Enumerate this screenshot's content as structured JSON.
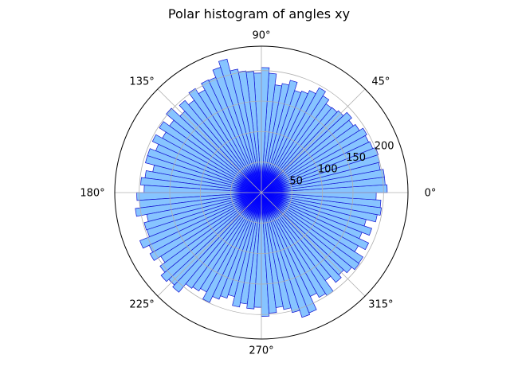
{
  "chart_data": {
    "type": "bar",
    "subtype": "polar-histogram",
    "title": "Polar histogram of angles xy",
    "theta_ticks": [
      "0°",
      "45°",
      "90°",
      "135°",
      "180°",
      "225°",
      "270°",
      "315°"
    ],
    "theta_tick_degrees": [
      0,
      45,
      90,
      135,
      180,
      225,
      270,
      315
    ],
    "r_ticks": [
      50,
      100,
      150,
      200
    ],
    "r_tick_labels": [
      "50",
      "100",
      "150",
      "200"
    ],
    "rlim": [
      0,
      240
    ],
    "rlabel_position_degrees": 22.5,
    "grid": true,
    "bin_count": 100,
    "bin_width_degrees": 3.6,
    "counts": [
      206,
      203,
      203,
      198,
      200,
      201,
      196,
      194,
      197,
      190,
      186,
      192,
      184,
      181,
      180,
      188,
      196,
      185,
      179,
      176,
      190,
      182,
      178,
      196,
      205,
      196,
      199,
      201,
      206,
      226,
      216,
      203,
      204,
      192,
      202,
      187,
      196,
      183,
      202,
      186,
      198,
      185,
      197,
      186,
      196,
      196,
      181,
      192,
      198,
      192,
      204,
      200,
      208,
      191,
      198,
      197,
      214,
      203,
      208,
      195,
      205,
      213,
      208,
      212,
      194,
      191,
      186,
      199,
      188,
      182,
      176,
      191,
      184,
      191,
      188,
      203,
      198,
      190,
      195,
      203,
      215,
      212,
      188,
      196,
      200,
      178,
      191,
      185,
      192,
      198,
      197,
      181,
      194,
      177,
      190,
      177,
      193,
      198,
      196,
      188
    ],
    "colors": {
      "bar_fill": "#87c4ff",
      "bar_edge": "#1414d0",
      "center_fill": "#0000ff",
      "grid": "#b0b0b0",
      "frame": "#000000"
    }
  }
}
